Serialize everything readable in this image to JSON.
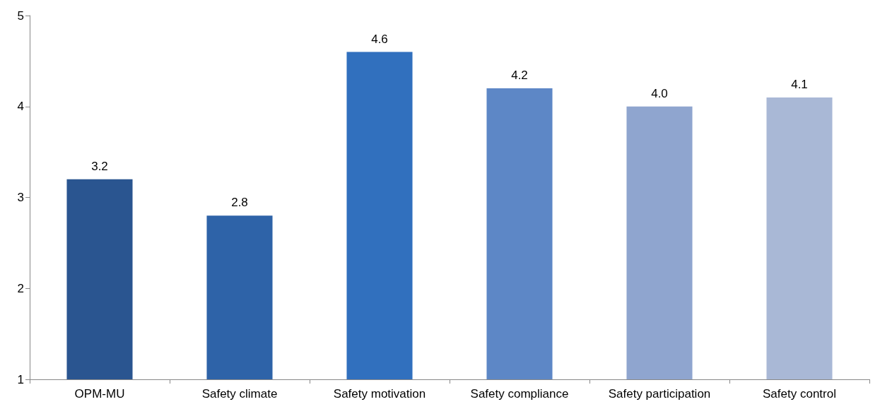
{
  "chart_data": {
    "type": "bar",
    "categories": [
      "OPM-MU",
      "Safety climate",
      "Safety motivation",
      "Safety compliance",
      "Safety participation",
      "Safety control"
    ],
    "values": [
      3.2,
      2.8,
      4.6,
      4.2,
      4.0,
      4.1
    ],
    "value_labels": [
      "3.2",
      "2.8",
      "4.6",
      "4.2",
      "4.0",
      "4.1"
    ],
    "colors": [
      "#2a5590",
      "#2e63a8",
      "#3170be",
      "#5d87c6",
      "#8fa5cf",
      "#a9b8d6"
    ],
    "ylim": [
      1,
      5
    ],
    "yticks": [
      1,
      2,
      3,
      4,
      5
    ],
    "grid": false
  }
}
